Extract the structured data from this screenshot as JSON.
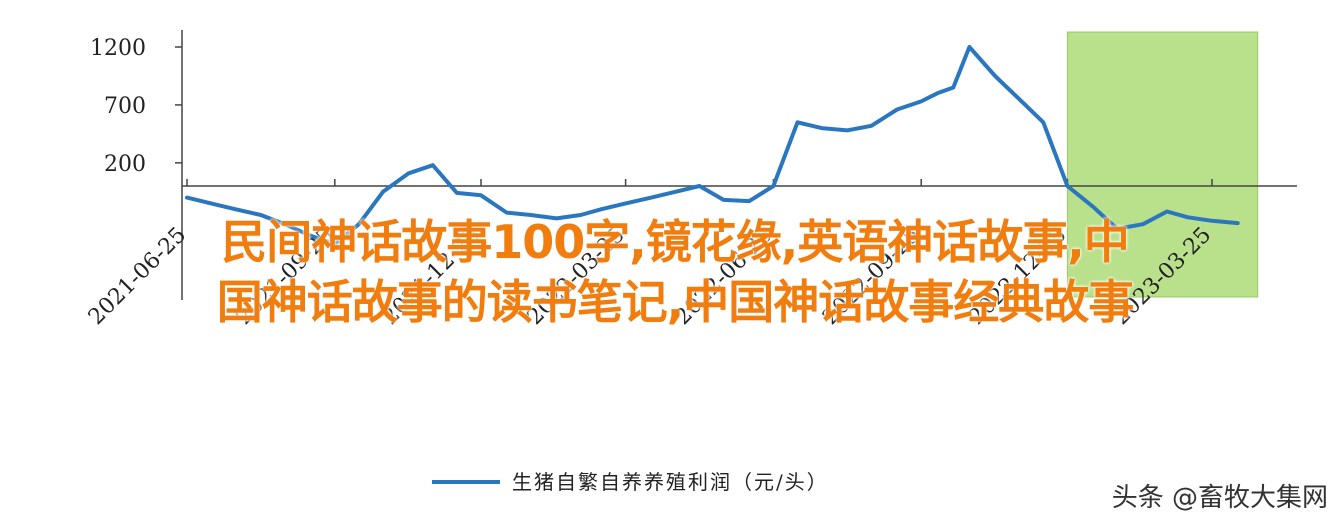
{
  "chart_data": {
    "type": "line",
    "y_ticks": [
      1200,
      700,
      200
    ],
    "x_tick_labels": [
      "2021-06-25",
      "2021-09-25",
      "2021-12-25",
      "2022-03-25",
      "2022-06-25",
      "2022-09-25",
      "2022-12-25",
      "2023-03-25"
    ],
    "ylim": [
      -800,
      1300
    ],
    "x": [
      "2021-06-25",
      "2021-07-10",
      "2021-07-25",
      "2021-08-10",
      "2021-08-25",
      "2021-09-10",
      "2021-09-25",
      "2021-10-10",
      "2021-10-25",
      "2021-11-10",
      "2021-11-25",
      "2021-12-10",
      "2021-12-25",
      "2022-01-10",
      "2022-01-25",
      "2022-02-10",
      "2022-02-25",
      "2022-03-10",
      "2022-03-25",
      "2022-04-10",
      "2022-04-25",
      "2022-05-10",
      "2022-05-25",
      "2022-06-10",
      "2022-06-25",
      "2022-07-10",
      "2022-07-25",
      "2022-08-10",
      "2022-08-25",
      "2022-09-10",
      "2022-09-25",
      "2022-10-05",
      "2022-10-15",
      "2022-10-25",
      "2022-11-10",
      "2022-11-25",
      "2022-12-10",
      "2022-12-25",
      "2023-01-10",
      "2023-01-25",
      "2023-02-10",
      "2023-02-25",
      "2023-03-10",
      "2023-03-25",
      "2023-04-10"
    ],
    "series": [
      {
        "name": "生猪自繁自养养殖利润（元/头）",
        "color": "#2a77c0",
        "values": [
          -100,
          -150,
          -200,
          -250,
          -330,
          -430,
          -500,
          -330,
          -50,
          110,
          180,
          -60,
          -80,
          -230,
          -250,
          -280,
          -250,
          -200,
          -150,
          -100,
          -50,
          0,
          -120,
          -130,
          0,
          550,
          500,
          480,
          520,
          660,
          730,
          800,
          850,
          1200,
          950,
          750,
          550,
          0,
          -180,
          -370,
          -330,
          -220,
          -270,
          -300,
          -320
        ]
      }
    ],
    "shaded_region": {
      "from": "2022-12-25",
      "to": "2023-04-10",
      "color": "#b9e08a"
    },
    "legend_position": "bottom-center",
    "grid": false
  },
  "overlay": {
    "line1": "民间神话故事100字,镜花缘,英语神话故事,中",
    "line2": "国神话故事的读书笔记,中国神话故事经典故事"
  },
  "watermark": "头条 @畜牧大集网"
}
